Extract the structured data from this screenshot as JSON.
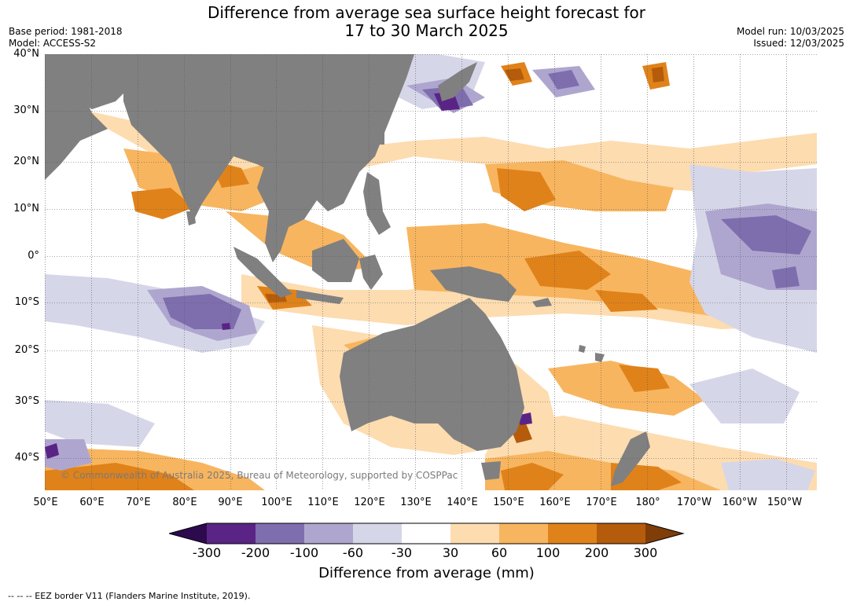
{
  "title": {
    "line1": "Difference from average sea surface height forecast for",
    "line2": "17 to 30 March 2025"
  },
  "meta": {
    "base_period": "Base period: 1981-2018",
    "model": "Model: ACCESS-S2",
    "model_run": "Model run: 10/03/2025",
    "issued": "Issued: 12/03/2025"
  },
  "map": {
    "lat_labels": [
      "40°N",
      "30°N",
      "20°N",
      "10°N",
      "0°",
      "10°S",
      "20°S",
      "30°S",
      "40°S"
    ],
    "lon_labels": [
      "50°E",
      "60°E",
      "70°E",
      "80°E",
      "90°E",
      "100°E",
      "110°E",
      "120°E",
      "130°E",
      "140°E",
      "150°E",
      "160°E",
      "170°E",
      "180°",
      "170°W",
      "160°W",
      "150°W"
    ],
    "land_color": "#808080",
    "grid": true,
    "copyright": "© Commonwealth of Australia 2025, Bureau of Meteorology, supported by COSPPac"
  },
  "colorbar": {
    "ticks": [
      "-300",
      "-200",
      "-100",
      "-60",
      "-30",
      "30",
      "60",
      "100",
      "200",
      "300"
    ],
    "colors": [
      "#2d0a4e",
      "#5a2486",
      "#7e6eae",
      "#afa6cf",
      "#d6d6e9",
      "#ffffff",
      "#fddcb0",
      "#f8b55f",
      "#e0821a",
      "#b45b0c",
      "#7f3d08"
    ],
    "title": "Difference from average (mm)"
  },
  "footnote": "--  --  -- EEZ border V11 (Flanders Marine Institute, 2019)."
}
